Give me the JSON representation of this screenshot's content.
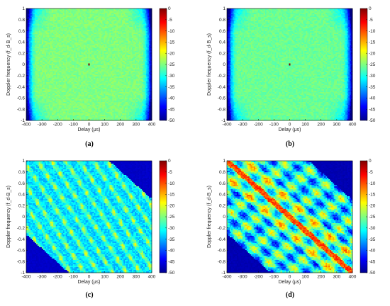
{
  "chart_data": [
    {
      "panel": "(a)",
      "type": "heatmap",
      "pattern": "thumbtack",
      "xlabel": "Delay (μs)",
      "ylabel": "Doppler frequency (f_d·B_s)",
      "xlim": [
        -400,
        400
      ],
      "ylim": [
        -1,
        1
      ],
      "xticks": [
        -400,
        -300,
        -200,
        -100,
        0,
        100,
        200,
        300,
        400
      ],
      "yticks": [
        -1,
        -0.8,
        -0.6,
        -0.4,
        -0.2,
        0,
        0.2,
        0.4,
        0.6,
        0.8,
        1
      ],
      "colorbar": {
        "min": -50,
        "max": 0,
        "ticks": [
          0,
          -5,
          -10,
          -15,
          -20,
          -25,
          -30,
          -35,
          -40,
          -45,
          -50
        ]
      },
      "peak": {
        "delay": 0,
        "doppler": 0,
        "value_db": 0
      },
      "floor_db": -25
    },
    {
      "panel": "(b)",
      "type": "heatmap",
      "pattern": "thumbtack",
      "xlabel": "Delay (μs)",
      "ylabel": "Doppler frequency (f_d·B_s)",
      "xlim": [
        -400,
        400
      ],
      "ylim": [
        -1,
        1
      ],
      "xticks": [
        -400,
        -300,
        -200,
        -100,
        0,
        100,
        200,
        300,
        400
      ],
      "yticks": [
        -1,
        -0.8,
        -0.6,
        -0.4,
        -0.2,
        0,
        0.2,
        0.4,
        0.6,
        0.8,
        1
      ],
      "colorbar": {
        "min": -50,
        "max": 0,
        "ticks": [
          0,
          -5,
          -10,
          -15,
          -20,
          -25,
          -30,
          -35,
          -40,
          -45,
          -50
        ]
      },
      "peak": {
        "delay": 0,
        "doppler": 0,
        "value_db": 0
      },
      "floor_db": -26
    },
    {
      "panel": "(c)",
      "type": "heatmap",
      "pattern": "ridge-grid",
      "xlabel": "Delay (μs)",
      "ylabel": "Doppler frequency (f_d·B_s)",
      "xlim": [
        -400,
        400
      ],
      "ylim": [
        -1,
        1
      ],
      "xticks": [
        -400,
        -300,
        -200,
        -100,
        0,
        100,
        200,
        300,
        400
      ],
      "yticks": [
        -1,
        -0.8,
        -0.6,
        -0.4,
        -0.2,
        0,
        0.2,
        0.4,
        0.6,
        0.8,
        1
      ],
      "colorbar": {
        "min": -50,
        "max": 0,
        "ticks": [
          0,
          -5,
          -10,
          -15,
          -20,
          -25,
          -30,
          -35,
          -40,
          -45,
          -50
        ]
      },
      "ridge_db": -20,
      "floor_db": -45
    },
    {
      "panel": "(d)",
      "type": "heatmap",
      "pattern": "diagonal-ridge",
      "xlabel": "Delay (μs)",
      "ylabel": "Doppler frequency (f_d·B_s)",
      "xlim": [
        -400,
        400
      ],
      "ylim": [
        -1,
        1
      ],
      "xticks": [
        -400,
        -300,
        -200,
        -100,
        0,
        100,
        200,
        300,
        400
      ],
      "yticks": [
        -1,
        -0.8,
        -0.6,
        -0.4,
        -0.2,
        0,
        0.2,
        0.4,
        0.6,
        0.8,
        1
      ],
      "colorbar": {
        "min": -50,
        "max": 0,
        "ticks": [
          0,
          -5,
          -10,
          -15,
          -20,
          -25,
          -30,
          -35,
          -40,
          -45,
          -50
        ]
      },
      "ridge_db": -5,
      "floor_db": -45
    }
  ]
}
